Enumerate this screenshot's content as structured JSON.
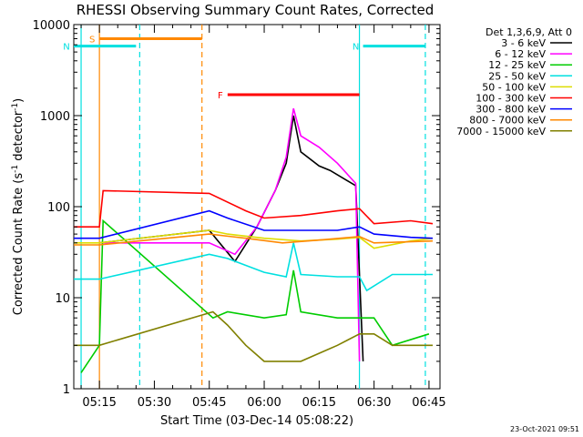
{
  "chart_data": {
    "type": "line",
    "title": "RHESSI Observing Summary Count Rates, Corrected",
    "xlabel": "Start Time (03-Dec-14 05:08:22)",
    "ylabel_main": "Corrected Count Rate (s",
    "ylabel_sup1": "-1",
    "ylabel_mid": " detector",
    "ylabel_sup2": "-1",
    "ylabel_end": ")",
    "yscale": "log",
    "ylim": [
      1,
      10000
    ],
    "xlim_minutes": [
      "05:08",
      "06:48"
    ],
    "x_ticks": [
      "05:15",
      "05:30",
      "05:45",
      "06:00",
      "06:15",
      "06:30",
      "06:45"
    ],
    "y_ticks": [
      "1",
      "10",
      "100",
      "1000",
      "10000"
    ],
    "legend_title": "Det 1,3,6,9, Att 0",
    "legend_position": "top-right, outside plot",
    "series": [
      {
        "name": "3 - 6 keV",
        "color": "#000000",
        "points": [
          [
            "05:15",
            40
          ],
          [
            "05:45",
            55
          ],
          [
            "05:52",
            25
          ],
          [
            "05:58",
            60
          ],
          [
            "06:03",
            150
          ],
          [
            "06:06",
            300
          ],
          [
            "06:08",
            1000
          ],
          [
            "06:10",
            400
          ],
          [
            "06:15",
            280
          ],
          [
            "06:18",
            250
          ],
          [
            "06:25",
            170
          ],
          [
            "06:27",
            2
          ]
        ]
      },
      {
        "name": "6 - 12 keV",
        "color": "#ff00ff",
        "points": [
          [
            "05:15",
            40
          ],
          [
            "05:45",
            40
          ],
          [
            "05:52",
            30
          ],
          [
            "05:58",
            60
          ],
          [
            "06:03",
            150
          ],
          [
            "06:06",
            350
          ],
          [
            "06:08",
            1200
          ],
          [
            "06:10",
            600
          ],
          [
            "06:15",
            450
          ],
          [
            "06:20",
            300
          ],
          [
            "06:25",
            180
          ],
          [
            "06:26",
            2
          ]
        ]
      },
      {
        "name": "12 - 25 keV",
        "color": "#00cc00",
        "points": [
          [
            "05:10",
            1.5
          ],
          [
            "05:15",
            3
          ],
          [
            "05:16",
            70
          ],
          [
            "05:46",
            6
          ],
          [
            "05:50",
            7
          ],
          [
            "06:00",
            6
          ],
          [
            "06:06",
            6.5
          ],
          [
            "06:08",
            20
          ],
          [
            "06:10",
            7
          ],
          [
            "06:20",
            6
          ],
          [
            "06:26",
            6
          ],
          [
            "06:30",
            6
          ],
          [
            "06:35",
            3
          ],
          [
            "06:45",
            4
          ]
        ]
      },
      {
        "name": "25 - 50 keV",
        "color": "#00e0e0",
        "points": [
          [
            "05:08",
            16
          ],
          [
            "05:15",
            16
          ],
          [
            "05:45",
            30
          ],
          [
            "05:50",
            27
          ],
          [
            "06:00",
            19
          ],
          [
            "06:06",
            17
          ],
          [
            "06:08",
            40
          ],
          [
            "06:10",
            18
          ],
          [
            "06:20",
            17
          ],
          [
            "06:26",
            17
          ],
          [
            "06:28",
            12
          ],
          [
            "06:35",
            18
          ],
          [
            "06:46",
            18
          ]
        ]
      },
      {
        "name": "50 - 100 keV",
        "color": "#dddd00",
        "points": [
          [
            "05:08",
            40
          ],
          [
            "05:15",
            40
          ],
          [
            "05:45",
            55
          ],
          [
            "05:50",
            50
          ],
          [
            "06:00",
            45
          ],
          [
            "06:10",
            42
          ],
          [
            "06:20",
            44
          ],
          [
            "06:26",
            46
          ],
          [
            "06:30",
            35
          ],
          [
            "06:40",
            42
          ],
          [
            "06:46",
            45
          ]
        ]
      },
      {
        "name": "100 - 300 keV",
        "color": "#ff0000",
        "points": [
          [
            "05:08",
            60
          ],
          [
            "05:15",
            60
          ],
          [
            "05:16",
            150
          ],
          [
            "05:45",
            140
          ],
          [
            "05:55",
            90
          ],
          [
            "06:00",
            75
          ],
          [
            "06:10",
            80
          ],
          [
            "06:20",
            90
          ],
          [
            "06:26",
            95
          ],
          [
            "06:30",
            65
          ],
          [
            "06:40",
            70
          ],
          [
            "06:46",
            65
          ]
        ]
      },
      {
        "name": "300 - 800 keV",
        "color": "#0000ff",
        "points": [
          [
            "05:08",
            45
          ],
          [
            "05:15",
            45
          ],
          [
            "05:45",
            90
          ],
          [
            "05:50",
            75
          ],
          [
            "06:00",
            55
          ],
          [
            "06:10",
            55
          ],
          [
            "06:20",
            55
          ],
          [
            "06:26",
            60
          ],
          [
            "06:30",
            50
          ],
          [
            "06:40",
            46
          ],
          [
            "06:46",
            45
          ]
        ]
      },
      {
        "name": "800 - 7000 keV",
        "color": "#ff8800",
        "points": [
          [
            "05:08",
            38
          ],
          [
            "05:15",
            38
          ],
          [
            "05:45",
            50
          ],
          [
            "05:55",
            45
          ],
          [
            "06:05",
            40
          ],
          [
            "06:15",
            43
          ],
          [
            "06:26",
            47
          ],
          [
            "06:30",
            40
          ],
          [
            "06:46",
            42
          ]
        ]
      },
      {
        "name": "7000 - 15000 keV",
        "color": "#808000",
        "points": [
          [
            "05:08",
            3
          ],
          [
            "05:15",
            3
          ],
          [
            "05:46",
            7
          ],
          [
            "05:50",
            5
          ],
          [
            "05:55",
            3
          ],
          [
            "06:00",
            2
          ],
          [
            "06:10",
            2
          ],
          [
            "06:20",
            3
          ],
          [
            "06:26",
            4
          ],
          [
            "06:30",
            4
          ],
          [
            "06:35",
            3
          ],
          [
            "06:46",
            3
          ]
        ]
      }
    ],
    "flags": [
      {
        "label": "S",
        "color": "#ff8800",
        "start": "05:15",
        "end": "05:43",
        "level": 7000
      },
      {
        "label": "N",
        "color": "#00e0e0",
        "start": "05:08",
        "end": "05:25",
        "level": 5800
      },
      {
        "label": "N",
        "color": "#00e0e0",
        "start": "06:27",
        "end": "06:44",
        "level": 5800
      },
      {
        "label": "F",
        "color": "#ff0000",
        "start": "05:50",
        "end": "06:26",
        "level": 1700
      }
    ],
    "markers": [
      {
        "color": "#00e0e0",
        "time": "05:10",
        "style": "solid"
      },
      {
        "color": "#ff8800",
        "time": "05:15",
        "style": "solid"
      },
      {
        "color": "#00e0e0",
        "time": "05:26",
        "style": "dashed"
      },
      {
        "color": "#ff8800",
        "time": "05:43",
        "style": "dashed"
      },
      {
        "color": "#00e0e0",
        "time": "06:26",
        "style": "solid"
      },
      {
        "color": "#00e0e0",
        "time": "06:44",
        "style": "dashed"
      }
    ]
  },
  "timestamp": "23-Oct-2021 09:51"
}
